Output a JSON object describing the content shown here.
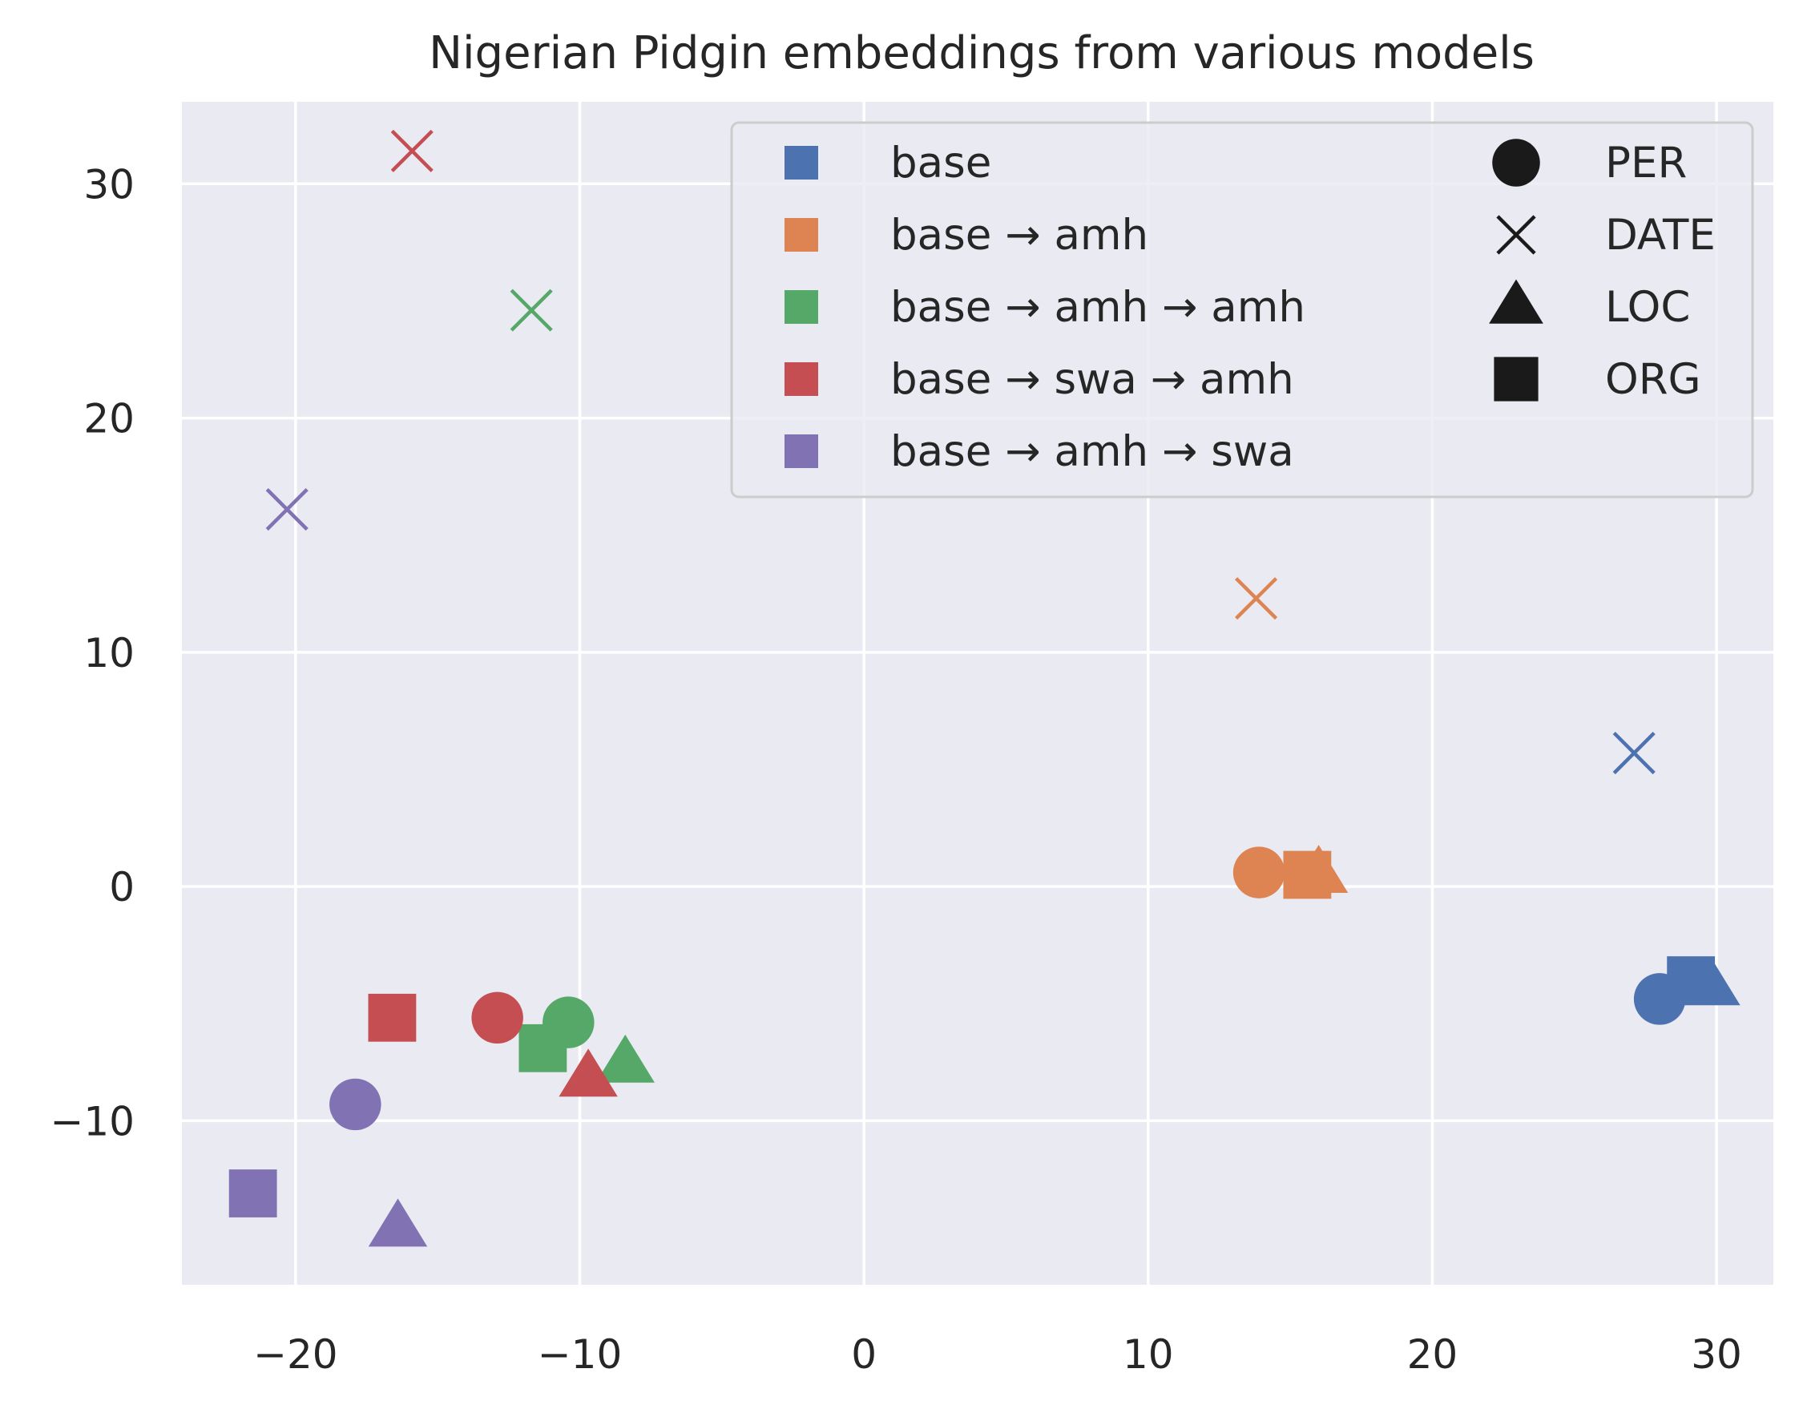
{
  "chart_data": {
    "type": "scatter",
    "title": "Nigerian Pidgin embeddings from various models",
    "xlabel": "",
    "ylabel": "",
    "xlim": [
      -24,
      32
    ],
    "ylim": [
      -17,
      33.5
    ],
    "x_ticks": [
      -20,
      -10,
      0,
      10,
      20,
      30
    ],
    "x_tick_labels": [
      "−20",
      "−10",
      "0",
      "10",
      "20",
      "30"
    ],
    "y_ticks": [
      -10,
      0,
      10,
      20,
      30
    ],
    "y_tick_labels": [
      "−10",
      "0",
      "10",
      "20",
      "30"
    ],
    "grid": true,
    "legend_position": "top-right",
    "colors": {
      "background": "#eaeaf2",
      "grid": "#ffffff",
      "text": "#262626",
      "marker_key": "#1a1a1a"
    },
    "series": [
      {
        "name": "base",
        "color": "#4c72b0",
        "points": [
          {
            "label": "PER",
            "x": 28.0,
            "y": -4.8
          },
          {
            "label": "DATE",
            "x": 27.1,
            "y": 5.7
          },
          {
            "label": "LOC",
            "x": 29.8,
            "y": -4.3
          },
          {
            "label": "ORG",
            "x": 29.1,
            "y": -4.0
          }
        ]
      },
      {
        "name": "base → amh",
        "color": "#dd8452",
        "points": [
          {
            "label": "PER",
            "x": 13.9,
            "y": 0.6
          },
          {
            "label": "DATE",
            "x": 13.8,
            "y": 12.3
          },
          {
            "label": "LOC",
            "x": 16.0,
            "y": 0.5
          },
          {
            "label": "ORG",
            "x": 15.6,
            "y": 0.5
          }
        ]
      },
      {
        "name": "base → amh → amh",
        "color": "#55a868",
        "points": [
          {
            "label": "PER",
            "x": -10.4,
            "y": -5.8
          },
          {
            "label": "DATE",
            "x": -11.7,
            "y": 24.6
          },
          {
            "label": "LOC",
            "x": -8.4,
            "y": -7.6
          },
          {
            "label": "ORG",
            "x": -11.3,
            "y": -6.9
          }
        ]
      },
      {
        "name": "base → swa → amh",
        "color": "#c44e52",
        "points": [
          {
            "label": "PER",
            "x": -12.9,
            "y": -5.6
          },
          {
            "label": "DATE",
            "x": -15.9,
            "y": 31.4
          },
          {
            "label": "LOC",
            "x": -9.7,
            "y": -8.2
          },
          {
            "label": "ORG",
            "x": -16.6,
            "y": -5.6
          }
        ]
      },
      {
        "name": "base → amh → swa",
        "color": "#8172b3",
        "points": [
          {
            "label": "PER",
            "x": -17.9,
            "y": -9.3
          },
          {
            "label": "DATE",
            "x": -20.3,
            "y": 16.1
          },
          {
            "label": "LOC",
            "x": -16.4,
            "y": -14.6
          },
          {
            "label": "ORG",
            "x": -21.5,
            "y": -13.1
          }
        ]
      }
    ],
    "marker_legend": [
      {
        "label": "PER",
        "marker": "circle"
      },
      {
        "label": "DATE",
        "marker": "x"
      },
      {
        "label": "LOC",
        "marker": "triangle"
      },
      {
        "label": "ORG",
        "marker": "square"
      }
    ]
  }
}
